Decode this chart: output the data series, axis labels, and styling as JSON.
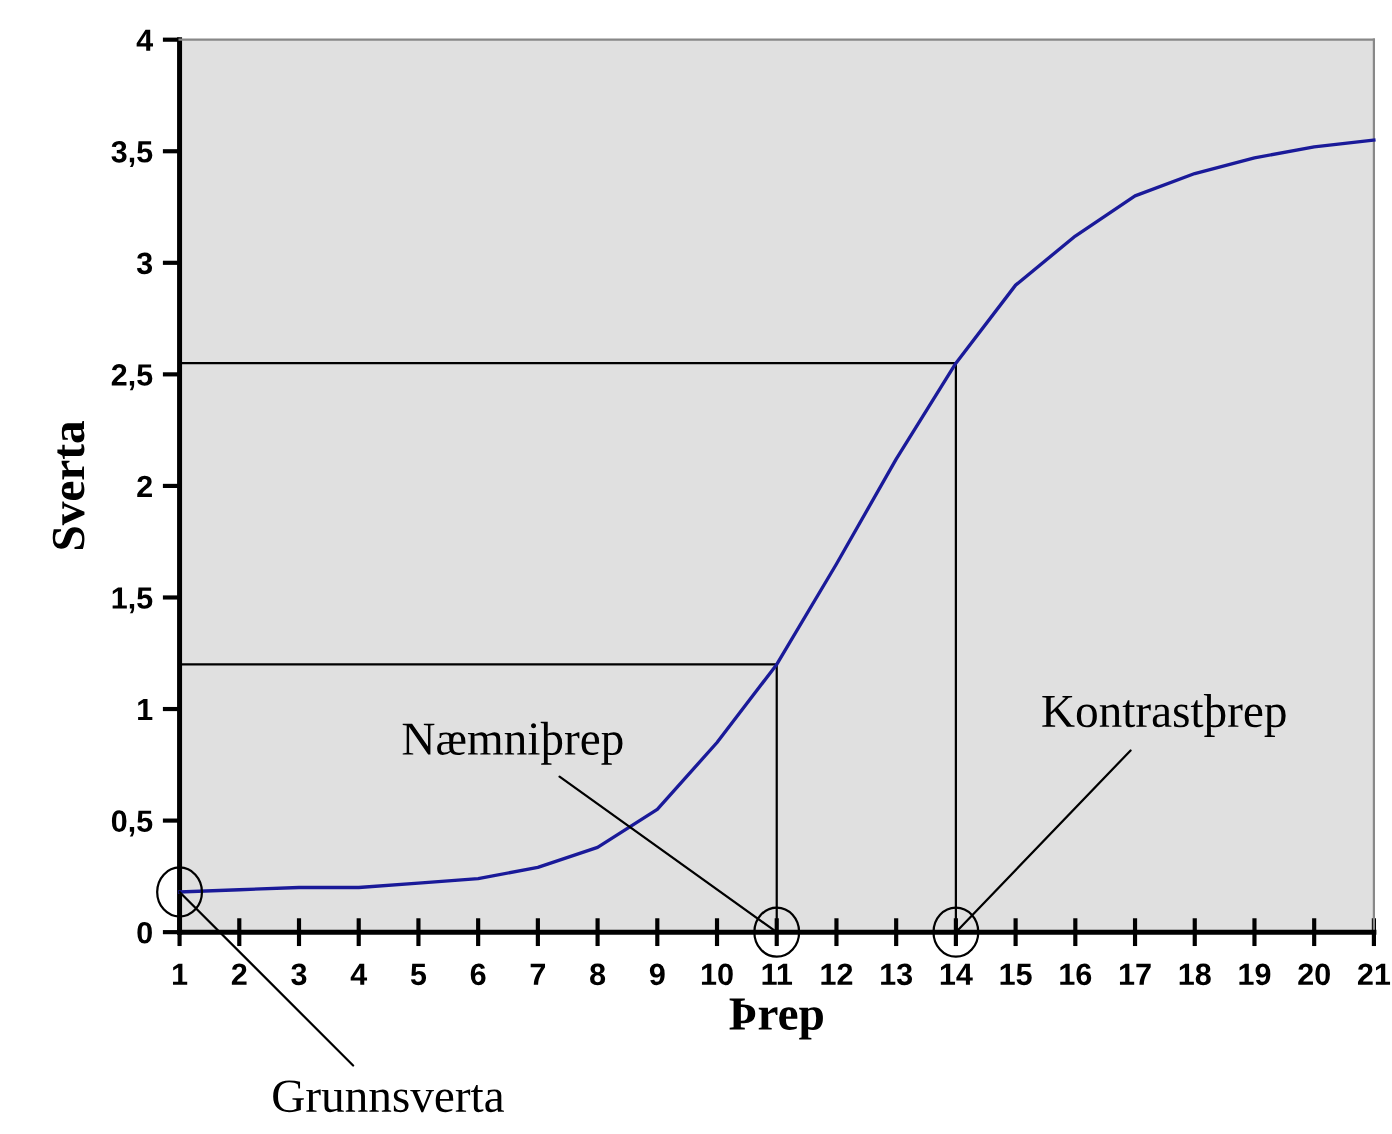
{
  "chart_data": {
    "type": "line",
    "xlabel": "Þrep",
    "ylabel": "Sverta",
    "x": [
      1,
      2,
      3,
      4,
      5,
      6,
      7,
      8,
      9,
      10,
      11,
      12,
      13,
      14,
      15,
      16,
      17,
      18,
      19,
      20,
      21
    ],
    "series": [
      {
        "color": "#1a1a99",
        "values": [
          0.18,
          0.19,
          0.2,
          0.2,
          0.22,
          0.24,
          0.29,
          0.38,
          0.55,
          0.85,
          1.2,
          1.65,
          2.12,
          2.55,
          2.9,
          3.12,
          3.3,
          3.4,
          3.47,
          3.52,
          3.55
        ]
      },
      {
        "color": "#000000",
        "x": [
          1,
          11,
          11
        ],
        "values": [
          1.2,
          1.2,
          0
        ]
      },
      {
        "color": "#000000",
        "x": [
          1,
          14,
          14
        ],
        "values": [
          2.55,
          2.55,
          0
        ]
      }
    ],
    "xlim": [
      1,
      21
    ],
    "xticks": [
      1,
      2,
      3,
      4,
      5,
      6,
      7,
      8,
      9,
      10,
      11,
      12,
      13,
      14,
      15,
      16,
      17,
      18,
      19,
      20,
      21
    ],
    "ylim": [
      0,
      4
    ],
    "yticks": [
      0,
      {
        "value": 0.5,
        "label": "0,5"
      },
      1,
      {
        "value": 1.5,
        "label": "1,5"
      },
      2,
      {
        "value": 2.5,
        "label": "2,5"
      },
      3,
      {
        "value": 3.5,
        "label": "3,5"
      },
      4
    ],
    "grid": false,
    "legend": false,
    "marker": "none",
    "line_style": "solid",
    "annotations": [
      {
        "text": "Grunnsverta",
        "x": 1,
        "y": 0.18
      },
      {
        "text": "Næmniþrep",
        "x": 11,
        "y": 0
      },
      {
        "text": "Kontrastþrep",
        "x": 14,
        "y": 0
      }
    ]
  }
}
